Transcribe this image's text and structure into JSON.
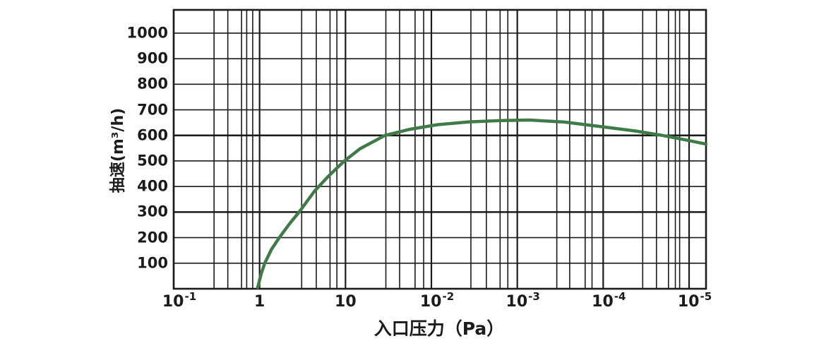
{
  "chart_data": {
    "type": "line",
    "title": "",
    "xlabel": "入口压力（Pa）",
    "ylabel": "抽速(m³/h)",
    "x_axis": {
      "scale": "log-decades",
      "tick_labels": [
        {
          "base": "10",
          "exp": "-1"
        },
        {
          "base": "1",
          "exp": ""
        },
        {
          "base": "10",
          "exp": ""
        },
        {
          "base": "10",
          "exp": "-2"
        },
        {
          "base": "10",
          "exp": "-3"
        },
        {
          "base": "10",
          "exp": "-4"
        },
        {
          "base": "10",
          "exp": "-5"
        }
      ],
      "tick_positions_decades": [
        0,
        1,
        2,
        3,
        4,
        5,
        6
      ],
      "axis_extent_decades": [
        0,
        6.197
      ],
      "minor_line_fractions_per_decade": [
        [
          0.47,
          0.63,
          0.79,
          0.85,
          0.92
        ],
        [
          0.49,
          0.66,
          0.82,
          0.9
        ],
        [
          0.47,
          0.63,
          0.81,
          0.91
        ],
        [
          0.46,
          0.64,
          0.8,
          0.89
        ],
        [
          0.46,
          0.61,
          0.79,
          0.87
        ],
        [
          0.46,
          0.62,
          0.76,
          0.84,
          0.89
        ]
      ]
    },
    "y_axis": {
      "ticks": [
        100,
        200,
        300,
        400,
        500,
        600,
        700,
        800,
        900,
        1000
      ],
      "range": [
        0,
        1091
      ],
      "emphasized_gridlines": [
        300,
        600
      ],
      "grid": "on"
    },
    "legend": "none",
    "series": [
      {
        "name": "pumping-speed-curve",
        "color": "#3e7b46",
        "stroke_width": 4.5,
        "points_decades_vs_value": [
          [
            0.978,
            5
          ],
          [
            1.02,
            60
          ],
          [
            1.06,
            100
          ],
          [
            1.14,
            155
          ],
          [
            1.23,
            200
          ],
          [
            1.35,
            255
          ],
          [
            1.46,
            300
          ],
          [
            1.64,
            382
          ],
          [
            1.8,
            440
          ],
          [
            1.98,
            498
          ],
          [
            2.17,
            548
          ],
          [
            2.46,
            600
          ],
          [
            2.75,
            624
          ],
          [
            3.07,
            642
          ],
          [
            3.44,
            653
          ],
          [
            3.81,
            658
          ],
          [
            4.14,
            660
          ],
          [
            4.55,
            652
          ],
          [
            5.05,
            631
          ],
          [
            5.38,
            617
          ],
          [
            5.69,
            600
          ],
          [
            5.95,
            583
          ],
          [
            6.197,
            566
          ]
        ]
      }
    ],
    "colors": {
      "background": "#ffffff",
      "grid_major": "#1b1b1b",
      "grid_minor": "#1b1b1b",
      "frame": "#1b1b1b",
      "text": "#1b1b1b",
      "curve": "#3e7b46"
    }
  }
}
